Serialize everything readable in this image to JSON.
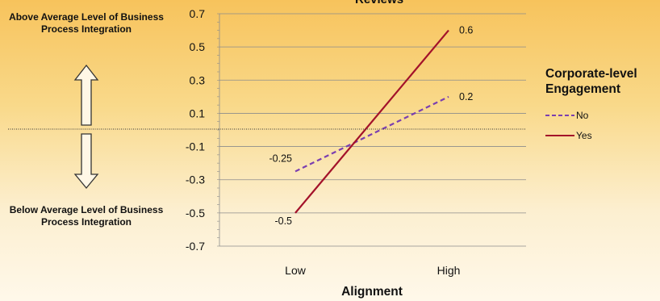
{
  "chart_data": {
    "type": "line",
    "title": "Reviews",
    "xlabel": "Alignment",
    "ylabel": "",
    "categories": [
      "Low",
      "High"
    ],
    "ylim": [
      -0.7,
      0.7
    ],
    "y_ticks": [
      "0.7",
      "0.5",
      "0.3",
      "0.1",
      "-0.1",
      "-0.3",
      "-0.5",
      "-0.7"
    ],
    "grid": true,
    "legend_title": "Corporate-level Engagement",
    "legend_placement": "right",
    "series": [
      {
        "name": "No",
        "values": [
          -0.25,
          0.2
        ],
        "labels": [
          "-0.25",
          "0.2"
        ],
        "color": "#7b3fb0",
        "style": "dashed"
      },
      {
        "name": "Yes",
        "values": [
          -0.5,
          0.6
        ],
        "labels": [
          "-0.5",
          "0.6"
        ],
        "color": "#a3122a",
        "style": "solid"
      }
    ]
  },
  "annotations": {
    "above": "Above Average Level of Business Process Integration",
    "below": "Below Average Level of Business Process Integration"
  }
}
